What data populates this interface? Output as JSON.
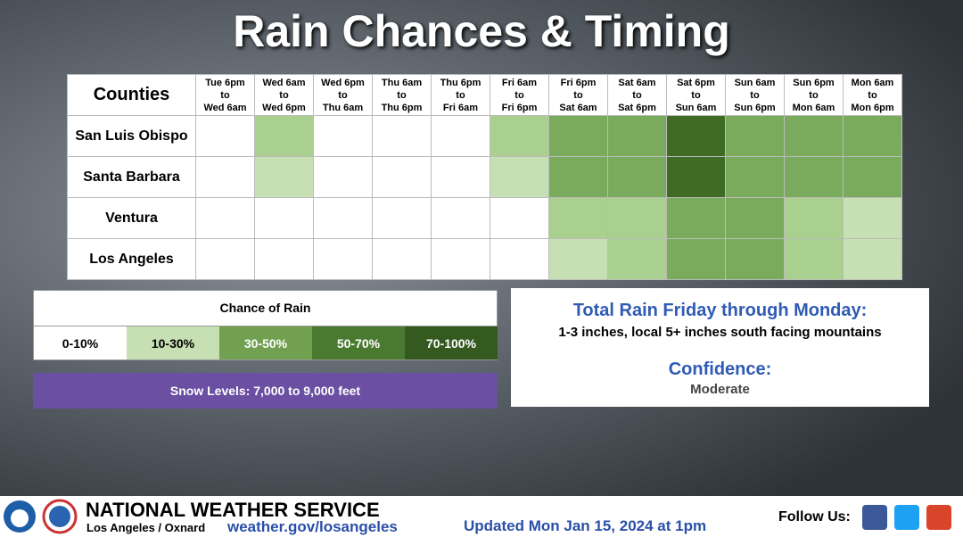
{
  "title": "Rain Chances & Timing",
  "table": {
    "corner": "Counties",
    "columns": [
      [
        "Tue 6pm",
        "to",
        "Wed 6am"
      ],
      [
        "Wed 6am",
        "to",
        "Wed 6pm"
      ],
      [
        "Wed 6pm",
        "to",
        "Thu 6am"
      ],
      [
        "Thu 6am",
        "to",
        "Thu 6pm"
      ],
      [
        "Thu 6pm",
        "to",
        "Fri 6am"
      ],
      [
        "Fri 6am",
        "to",
        "Fri 6pm"
      ],
      [
        "Fri 6pm",
        "to",
        "Sat 6am"
      ],
      [
        "Sat 6am",
        "to",
        "Sat 6pm"
      ],
      [
        "Sat 6pm",
        "to",
        "Sun 6am"
      ],
      [
        "Sun 6am",
        "to",
        "Sun 6pm"
      ],
      [
        "Sun 6pm",
        "to",
        "Mon 6am"
      ],
      [
        "Mon 6am",
        "to",
        "Mon 6pm"
      ]
    ],
    "rows": [
      {
        "name": "San Luis Obispo",
        "colors": [
          "#ffffff",
          "#a9d08e",
          "#ffffff",
          "#ffffff",
          "#ffffff",
          "#a9d08e",
          "#7aab5c",
          "#7aab5c",
          "#3f6b24",
          "#7aab5c",
          "#7aab5c",
          "#7aab5c"
        ]
      },
      {
        "name": "Santa Barbara",
        "colors": [
          "#ffffff",
          "#c6e0b4",
          "#ffffff",
          "#ffffff",
          "#ffffff",
          "#c6e0b4",
          "#7aab5c",
          "#7aab5c",
          "#3f6b24",
          "#7aab5c",
          "#7aab5c",
          "#7aab5c"
        ]
      },
      {
        "name": "Ventura",
        "colors": [
          "#ffffff",
          "#ffffff",
          "#ffffff",
          "#ffffff",
          "#ffffff",
          "#ffffff",
          "#a9d08e",
          "#a9d08e",
          "#7aab5c",
          "#7aab5c",
          "#a9d08e",
          "#c6e0b4"
        ]
      },
      {
        "name": "Los Angeles",
        "colors": [
          "#ffffff",
          "#ffffff",
          "#ffffff",
          "#ffffff",
          "#ffffff",
          "#ffffff",
          "#c6e0b4",
          "#a9d08e",
          "#7aab5c",
          "#7aab5c",
          "#a9d08e",
          "#c6e0b4"
        ]
      }
    ]
  },
  "legend": {
    "title": "Chance of Rain",
    "items": [
      {
        "label": "0-10%",
        "color": "#ffffff"
      },
      {
        "label": "10-30%",
        "color": "#c6e0b4"
      },
      {
        "label": "30-50%",
        "color": "#70a050"
      },
      {
        "label": "50-70%",
        "color": "#4a7a2f"
      },
      {
        "label": "70-100%",
        "color": "#345a20"
      }
    ]
  },
  "snow": "Snow Levels: 7,000 to 9,000 feet",
  "info": {
    "heading": "Total Rain Friday through Monday:",
    "detail": "1-3 inches, local 5+ inches south facing mountains",
    "confidence_heading": "Confidence:",
    "confidence": "Moderate"
  },
  "footer": {
    "agency": "NATIONAL WEATHER SERVICE",
    "office": "Los Angeles / Oxnard",
    "url": "weather.gov/losangeles",
    "updated": "Updated Mon Jan 15, 2024 at 1pm",
    "follow": "Follow Us:"
  }
}
